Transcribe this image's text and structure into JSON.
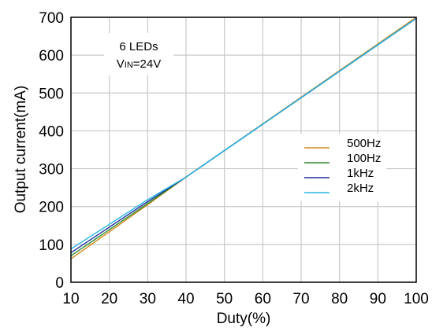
{
  "chart_data": {
    "type": "line",
    "xlabel": "Duty(%)",
    "ylabel": "Output current(mA)",
    "xlim": [
      10,
      100
    ],
    "ylim": [
      0,
      700
    ],
    "xticks": [
      "10",
      "20",
      "30",
      "40",
      "50",
      "60",
      "70",
      "80",
      "90",
      "100"
    ],
    "yticks": [
      "0",
      "100",
      "200",
      "300",
      "400",
      "500",
      "600",
      "700"
    ],
    "grid": true,
    "legend_position": "right",
    "annotation": {
      "line1": "6 LEDs",
      "line2_prefix": "V",
      "line2_sub": "IN",
      "line2_suffix": "=24V"
    },
    "series": [
      {
        "name": "500Hz",
        "color": "#d08a1c",
        "x": [
          10,
          30,
          40,
          100
        ],
        "y": [
          62,
          205,
          278,
          700
        ]
      },
      {
        "name": "100Hz",
        "color": "#2e8b2e",
        "x": [
          10,
          30,
          40,
          100
        ],
        "y": [
          70,
          208,
          278,
          697
        ]
      },
      {
        "name": "1kHz",
        "color": "#1f2f9e",
        "x": [
          10,
          30,
          40,
          100
        ],
        "y": [
          78,
          213,
          278,
          697
        ]
      },
      {
        "name": "2kHz",
        "color": "#27b6e8",
        "x": [
          10,
          30,
          40,
          100
        ],
        "y": [
          88,
          218,
          278,
          697
        ]
      }
    ]
  }
}
